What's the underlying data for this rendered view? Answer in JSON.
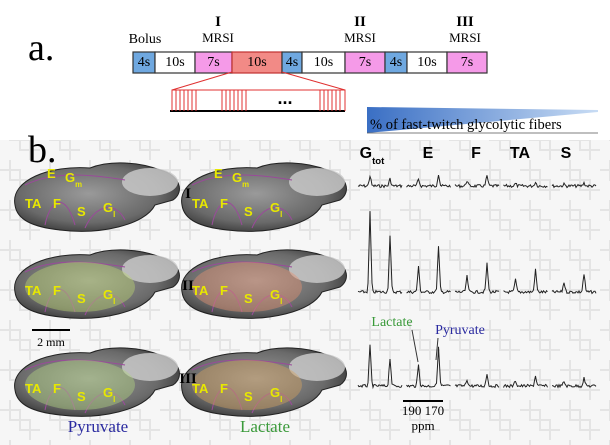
{
  "panel_a": {
    "label": "a.",
    "bolus": "Bolus",
    "phases": [
      {
        "numeral": "I",
        "name": "MRSI"
      },
      {
        "numeral": "II",
        "name": "MRSI"
      },
      {
        "numeral": "III",
        "name": "MRSI"
      }
    ],
    "blocks": [
      "4s",
      "10s",
      "7s",
      "10s",
      "4s",
      "10s",
      "7s",
      "4s",
      "10s",
      "7s"
    ],
    "ellipsis": "..."
  },
  "panel_b": {
    "label": "b.",
    "gradient_label": "% of fast-twitch glycolytic fibers",
    "columns": [
      {
        "text": "G",
        "sub": "tot"
      },
      {
        "text": "E"
      },
      {
        "text": "F"
      },
      {
        "text": "TA"
      },
      {
        "text": "S"
      }
    ],
    "rows": [
      "I",
      "II",
      "III"
    ],
    "scale_bar": "2 mm",
    "brain_captions": [
      "Pyruvate",
      "Lactate"
    ],
    "spectrum_labels": {
      "lactate": "Lactate",
      "pyruvate": "Pyruvate"
    },
    "ppm_ticks": "190 170",
    "ppm_unit": "ppm",
    "brains": [
      {
        "labels": [
          {
            "text": "E"
          },
          {
            "text": "G",
            "sub": "m"
          },
          {
            "text": "TA"
          },
          {
            "text": "F"
          },
          {
            "text": "S"
          },
          {
            "text": "G",
            "sub": "l"
          }
        ]
      },
      {
        "labels": [
          {
            "text": "E"
          },
          {
            "text": "G",
            "sub": "m"
          },
          {
            "text": "TA"
          },
          {
            "text": "F"
          },
          {
            "text": "S"
          },
          {
            "text": "G",
            "sub": "l"
          }
        ]
      },
      {
        "labels": [
          {
            "text": "TA"
          },
          {
            "text": "F"
          },
          {
            "text": "S"
          },
          {
            "text": "G",
            "sub": "l"
          }
        ]
      },
      {
        "labels": [
          {
            "text": "TA"
          },
          {
            "text": "F"
          },
          {
            "text": "S"
          },
          {
            "text": "G",
            "sub": "l"
          }
        ]
      },
      {
        "labels": [
          {
            "text": "TA"
          },
          {
            "text": "F"
          },
          {
            "text": "S"
          },
          {
            "text": "G",
            "sub": "l"
          }
        ]
      },
      {
        "labels": [
          {
            "text": "TA"
          },
          {
            "text": "F"
          },
          {
            "text": "S"
          },
          {
            "text": "G",
            "sub": "l"
          }
        ]
      }
    ]
  }
}
